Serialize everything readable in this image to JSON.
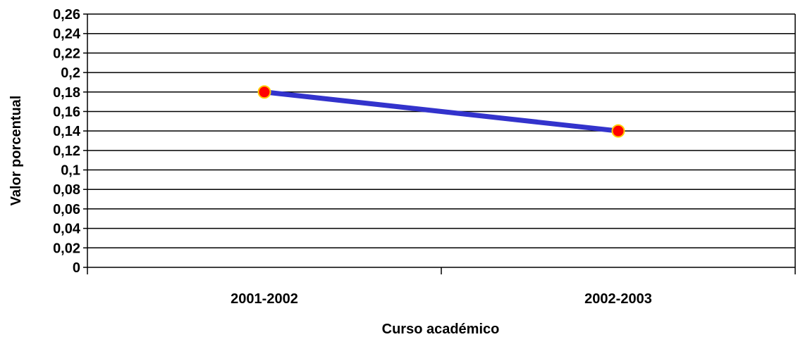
{
  "chart_data": {
    "type": "line",
    "title": "",
    "xlabel": "Curso académico",
    "ylabel": "Valor porcentual",
    "categories": [
      "2001-2002",
      "2002-2003"
    ],
    "series": [
      {
        "values": [
          0.18,
          0.14
        ],
        "color": "#3333cc",
        "marker_color": "#ff0000",
        "marker_edge_color": "#ffcc00"
      }
    ],
    "ylim": [
      0,
      0.26
    ],
    "yticks": [
      0,
      0.02,
      0.04,
      0.06,
      0.08,
      0.1,
      0.12,
      0.14,
      0.16,
      0.18,
      0.2,
      0.22,
      0.24,
      0.26
    ],
    "ytick_labels": [
      "0",
      "0,02",
      "0,04",
      "0,06",
      "0,08",
      "0,1",
      "0,12",
      "0,14",
      "0,16",
      "0,18",
      "0,2",
      "0,22",
      "0,24",
      "0,26"
    ],
    "grid": true,
    "legend": "none"
  }
}
